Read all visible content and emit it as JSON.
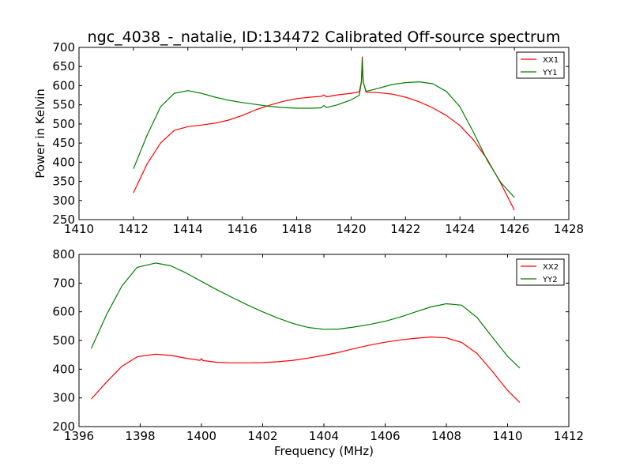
{
  "figure": {
    "title": "ngc_4038_-_natalie, ID:134472 Calibrated Off-source spectrum"
  },
  "chart_data": [
    {
      "type": "line",
      "title": "ngc_4038_-_natalie, ID:134472 Calibrated Off-source spectrum",
      "xlabel": "",
      "ylabel": "Power in Kelvin",
      "xlim": [
        1410,
        1428
      ],
      "ylim": [
        250,
        700
      ],
      "xticks": [
        1410,
        1412,
        1414,
        1416,
        1418,
        1420,
        1422,
        1424,
        1426,
        1428
      ],
      "yticks": [
        250,
        300,
        350,
        400,
        450,
        500,
        550,
        600,
        650,
        700
      ],
      "grid": false,
      "legend": "top-right",
      "series": [
        {
          "name": "XX1",
          "color": "#ff0000",
          "x": [
            1412.0,
            1412.5,
            1413.0,
            1413.5,
            1414.0,
            1414.5,
            1415.0,
            1415.5,
            1416.0,
            1416.5,
            1417.0,
            1417.5,
            1418.0,
            1418.5,
            1418.9,
            1419.0,
            1419.1,
            1419.5,
            1420.0,
            1420.3,
            1420.38,
            1420.41,
            1420.44,
            1420.55,
            1421.0,
            1421.5,
            1422.0,
            1422.5,
            1423.0,
            1423.5,
            1424.0,
            1424.5,
            1425.0,
            1425.5,
            1426.0
          ],
          "y": [
            320,
            395,
            450,
            483,
            493,
            497,
            502,
            510,
            522,
            537,
            549,
            559,
            566,
            570,
            572,
            576,
            571,
            576,
            580,
            584,
            612,
            675,
            612,
            583,
            582,
            578,
            570,
            558,
            542,
            522,
            496,
            458,
            408,
            345,
            275
          ]
        },
        {
          "name": "YY1",
          "color": "#008000",
          "x": [
            1412.0,
            1412.5,
            1413.0,
            1413.5,
            1414.0,
            1414.5,
            1415.0,
            1415.5,
            1416.0,
            1416.5,
            1417.0,
            1417.5,
            1418.0,
            1418.5,
            1418.9,
            1419.0,
            1419.1,
            1419.5,
            1420.0,
            1420.3,
            1420.38,
            1420.41,
            1420.44,
            1420.55,
            1421.0,
            1421.5,
            1422.0,
            1422.5,
            1423.0,
            1423.5,
            1424.0,
            1424.5,
            1425.0,
            1425.5,
            1426.0
          ],
          "y": [
            383,
            470,
            545,
            580,
            587,
            580,
            570,
            562,
            556,
            551,
            546,
            543,
            541,
            541,
            542,
            548,
            543,
            550,
            563,
            575,
            610,
            670,
            610,
            585,
            593,
            603,
            608,
            610,
            605,
            585,
            545,
            478,
            405,
            347,
            308
          ]
        }
      ]
    },
    {
      "type": "line",
      "title": "",
      "xlabel": "Frequency (MHz)",
      "ylabel": "",
      "xlim": [
        1396,
        1412
      ],
      "ylim": [
        200,
        800
      ],
      "xticks": [
        1396,
        1398,
        1400,
        1402,
        1404,
        1406,
        1408,
        1410,
        1412
      ],
      "yticks": [
        200,
        300,
        400,
        500,
        600,
        700,
        800
      ],
      "grid": false,
      "legend": "top-right",
      "series": [
        {
          "name": "XX2",
          "color": "#ff0000",
          "x": [
            1396.4,
            1396.9,
            1397.4,
            1397.9,
            1398.5,
            1399.0,
            1399.5,
            1399.95,
            1400.0,
            1400.05,
            1400.5,
            1401.0,
            1401.5,
            1402.0,
            1402.5,
            1403.0,
            1403.5,
            1404.0,
            1404.5,
            1405.0,
            1405.5,
            1406.0,
            1406.5,
            1407.0,
            1407.5,
            1408.0,
            1408.5,
            1409.0,
            1409.5,
            1410.0,
            1410.4
          ],
          "y": [
            296,
            355,
            410,
            443,
            452,
            448,
            438,
            431,
            437,
            430,
            424,
            422,
            422,
            423,
            426,
            431,
            439,
            448,
            459,
            472,
            484,
            494,
            502,
            508,
            512,
            509,
            493,
            455,
            393,
            326,
            284
          ]
        },
        {
          "name": "YY2",
          "color": "#008000",
          "x": [
            1396.4,
            1396.9,
            1397.4,
            1397.9,
            1398.5,
            1399.0,
            1399.5,
            1400.0,
            1400.5,
            1401.0,
            1401.5,
            1402.0,
            1402.5,
            1403.0,
            1403.5,
            1404.0,
            1404.5,
            1405.0,
            1405.5,
            1406.0,
            1406.5,
            1407.0,
            1407.5,
            1408.0,
            1408.5,
            1409.0,
            1409.5,
            1410.0,
            1410.4
          ],
          "y": [
            472,
            590,
            690,
            755,
            770,
            760,
            735,
            706,
            677,
            650,
            624,
            600,
            578,
            559,
            545,
            539,
            540,
            547,
            556,
            567,
            582,
            600,
            617,
            628,
            623,
            580,
            512,
            445,
            404
          ]
        }
      ]
    }
  ]
}
